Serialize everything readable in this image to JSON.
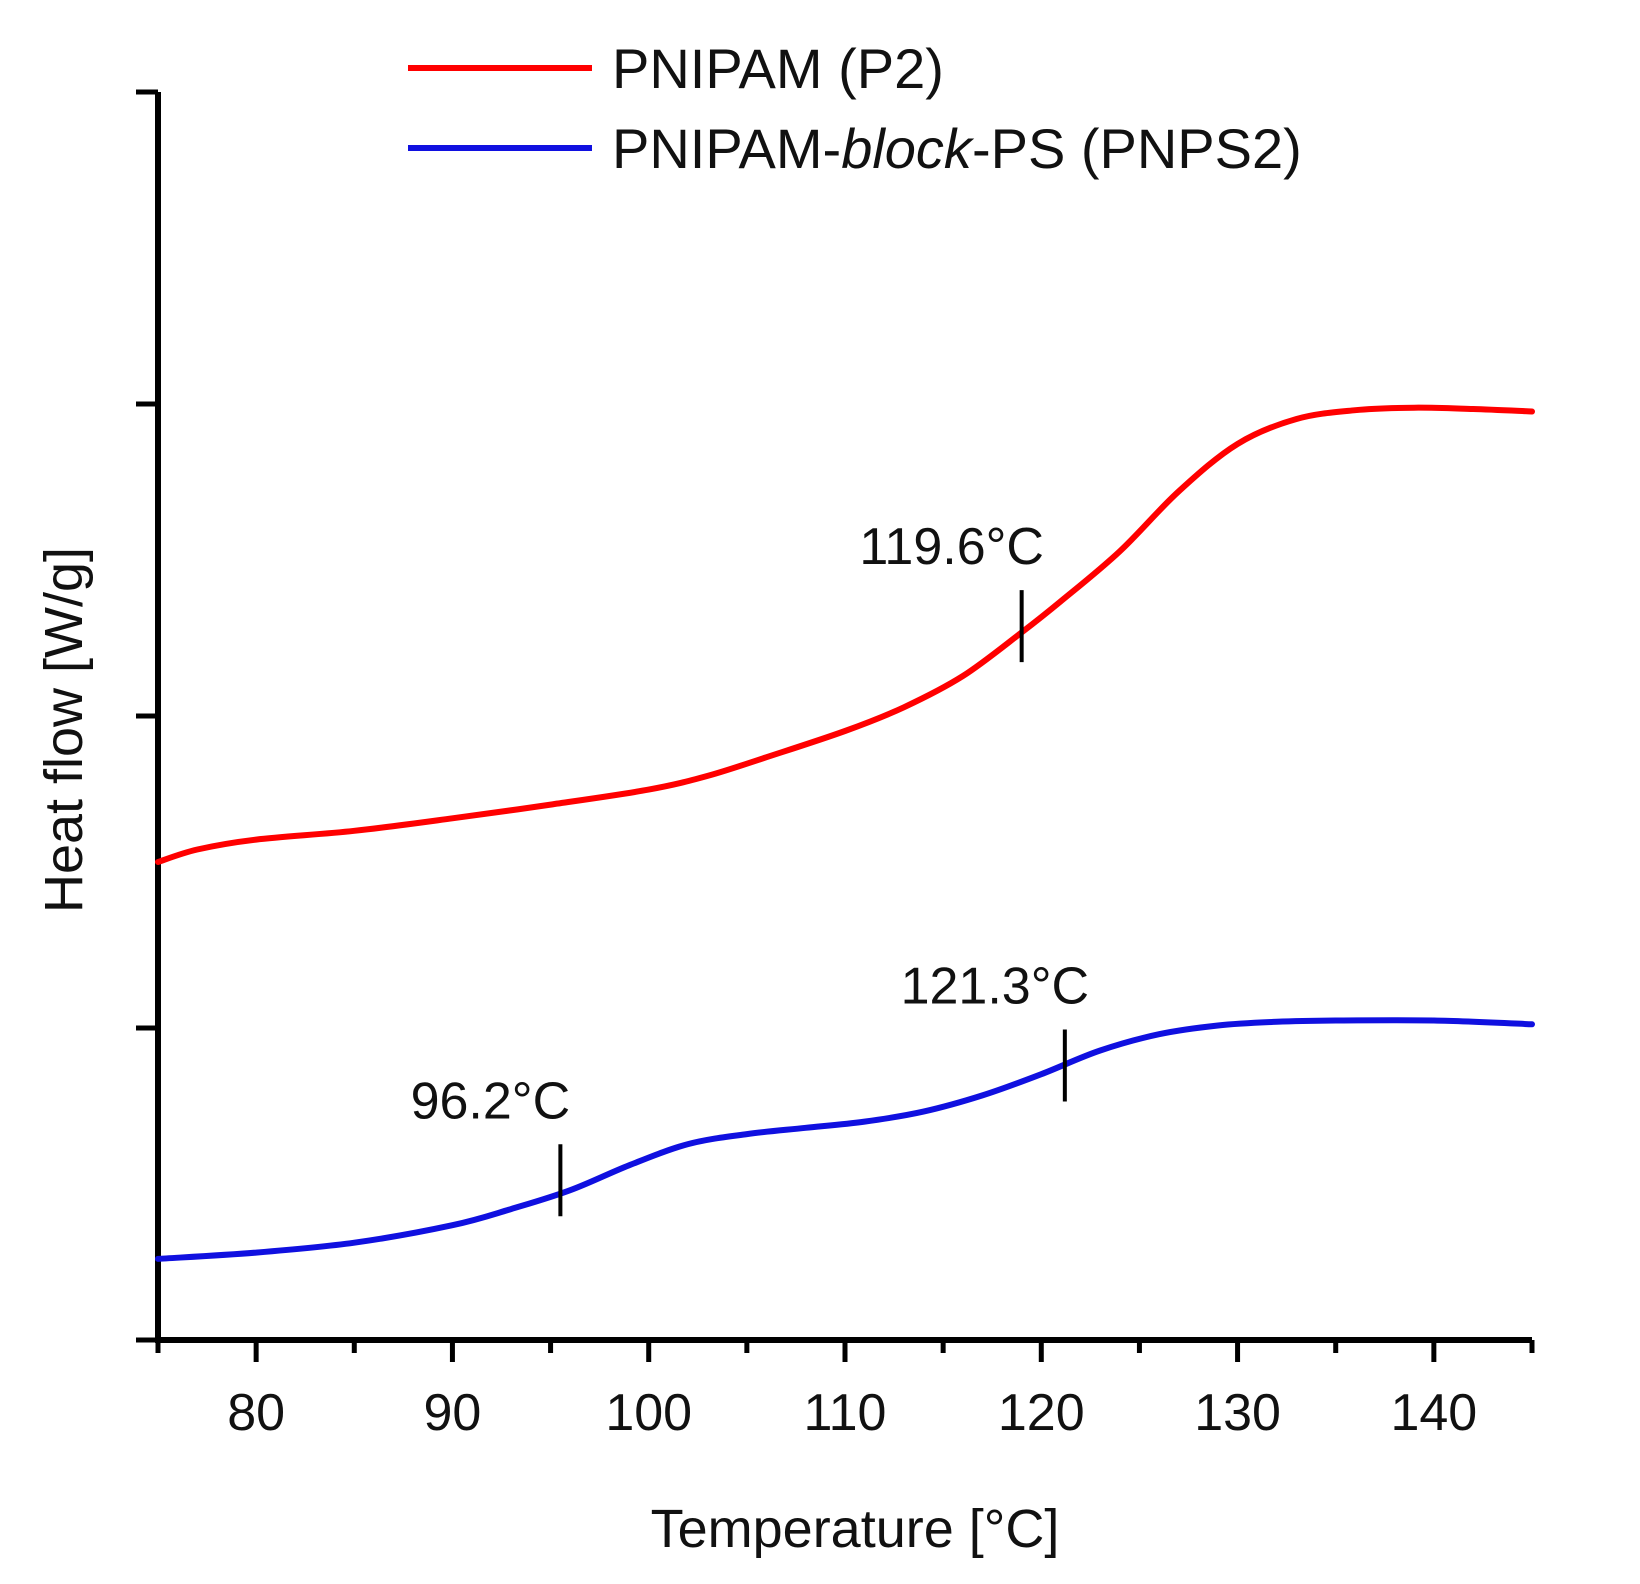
{
  "chart_data": {
    "type": "line",
    "title": "",
    "xlabel": "Temperature [°C]",
    "ylabel": "Heat flow [W/g]",
    "xlim": [
      75,
      145
    ],
    "ylim": [
      0,
      1
    ],
    "x_ticks": [
      80,
      90,
      100,
      110,
      120,
      130,
      140
    ],
    "y_ticks": [
      0,
      0.25,
      0.5,
      0.75,
      1.0
    ],
    "y_tick_labels_shown": false,
    "grid": false,
    "legend_position": "top-right",
    "series": [
      {
        "name_pre": "PNIPAM (P2)",
        "name_italic": "",
        "name_post": "",
        "color": "#ff0000",
        "points": [
          [
            75,
            0.383
          ],
          [
            77,
            0.393
          ],
          [
            80,
            0.401
          ],
          [
            85,
            0.408
          ],
          [
            90,
            0.418
          ],
          [
            95,
            0.429
          ],
          [
            100,
            0.441
          ],
          [
            103,
            0.452
          ],
          [
            106,
            0.467
          ],
          [
            110,
            0.488
          ],
          [
            113,
            0.507
          ],
          [
            116,
            0.532
          ],
          [
            119,
            0.567
          ],
          [
            121,
            0.592
          ],
          [
            124,
            0.632
          ],
          [
            127,
            0.68
          ],
          [
            130,
            0.718
          ],
          [
            133,
            0.738
          ],
          [
            136,
            0.745
          ],
          [
            139,
            0.747
          ],
          [
            142,
            0.746
          ],
          [
            145,
            0.744
          ]
        ]
      },
      {
        "name_pre": "PNIPAM-",
        "name_italic": "block",
        "name_post": "-PS (PNPS2)",
        "color": "#1010e0",
        "points": [
          [
            75,
            0.065
          ],
          [
            80,
            0.07
          ],
          [
            85,
            0.078
          ],
          [
            90,
            0.092
          ],
          [
            93,
            0.105
          ],
          [
            96,
            0.12
          ],
          [
            99,
            0.14
          ],
          [
            102,
            0.157
          ],
          [
            105,
            0.165
          ],
          [
            108,
            0.17
          ],
          [
            111,
            0.175
          ],
          [
            114,
            0.183
          ],
          [
            117,
            0.196
          ],
          [
            120,
            0.213
          ],
          [
            123,
            0.232
          ],
          [
            126,
            0.245
          ],
          [
            129,
            0.252
          ],
          [
            132,
            0.255
          ],
          [
            135,
            0.256
          ],
          [
            140,
            0.256
          ],
          [
            145,
            0.253
          ]
        ]
      }
    ],
    "annotations": [
      {
        "label": "119.6°C",
        "x": 119.0,
        "y": 0.572,
        "series": 0
      },
      {
        "label": "121.3°C",
        "x": 121.2,
        "y": 0.22,
        "series": 1
      },
      {
        "label": "96.2°C",
        "x": 95.5,
        "y": 0.128,
        "series": 1
      }
    ]
  }
}
